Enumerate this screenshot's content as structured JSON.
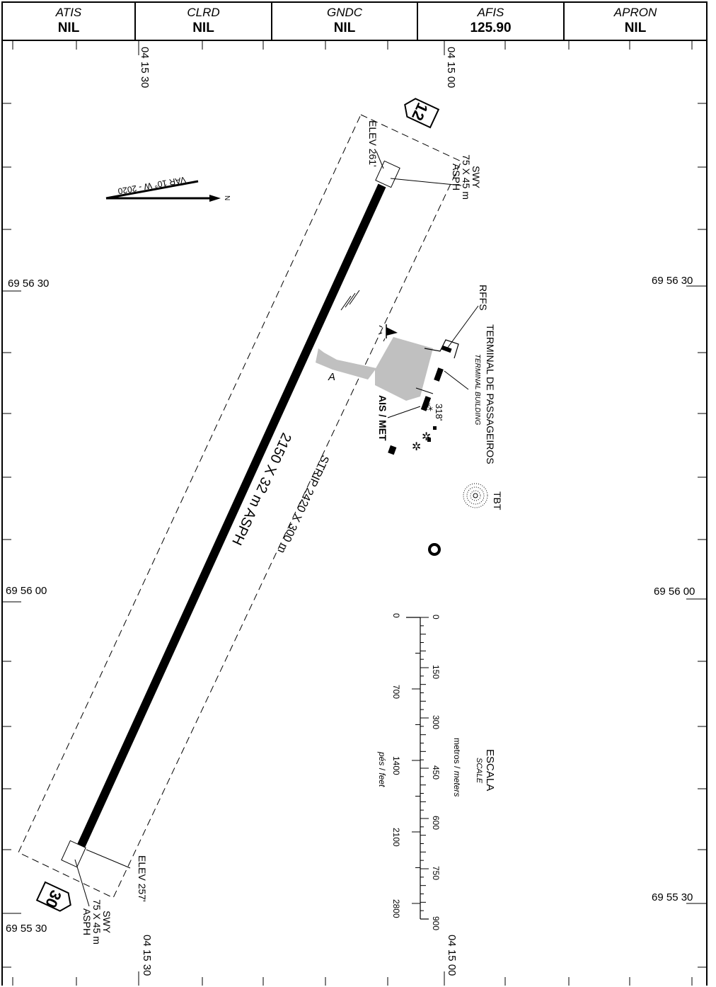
{
  "header": {
    "cells": [
      {
        "name": "ATIS",
        "value": "NIL"
      },
      {
        "name": "CLRD",
        "value": "NIL"
      },
      {
        "name": "GNDC",
        "value": "NIL"
      },
      {
        "name": "AFIS",
        "value": "125.90"
      },
      {
        "name": "APRON",
        "value": "NIL"
      }
    ]
  },
  "coordinates": {
    "lon_west": "04 15 30",
    "lon_east": "04 15 00",
    "lat_top": "69 56 30",
    "lat_mid": "69 56 00",
    "lat_bottom": "69 55 30"
  },
  "runway": {
    "designator_north": "12",
    "designator_south": "30",
    "dimensions": "2150 X 32 m ASPH",
    "strip": "STRIP 2420 X 300 m",
    "elev_north": "ELEV 261'",
    "elev_south": "ELEV 257'",
    "swy_north": [
      "SWY",
      "75 X 45 m",
      "ASPH"
    ],
    "swy_south": [
      "SWY",
      "75 X 45 m",
      "ASPH"
    ]
  },
  "taxiway": {
    "label": "A"
  },
  "variation": {
    "label": "VAR 10° W - 2020",
    "north_label": "N"
  },
  "facilities": {
    "rffs": "RFFS",
    "terminal": "TERMINAL DE PASSAGEIROS",
    "terminal_en": "TERMINAL BUILDING",
    "ais_met": "AIS / MET",
    "elevation_318": "318'",
    "tbt": "TBT"
  },
  "scale": {
    "title": "ESCALA",
    "title_en": "SCALE",
    "meters_label_pt": "metros",
    "meters_label_en": "meters",
    "feet_label_pt": "pés",
    "feet_label_en": "feet",
    "meter_ticks": [
      "0",
      "150",
      "300",
      "450",
      "600",
      "750",
      "900"
    ],
    "feet_ticks": [
      "0",
      "700",
      "1400",
      "2100",
      "2800"
    ]
  },
  "colors": {
    "apron": "#c0c0c0",
    "runway": "#000000"
  }
}
